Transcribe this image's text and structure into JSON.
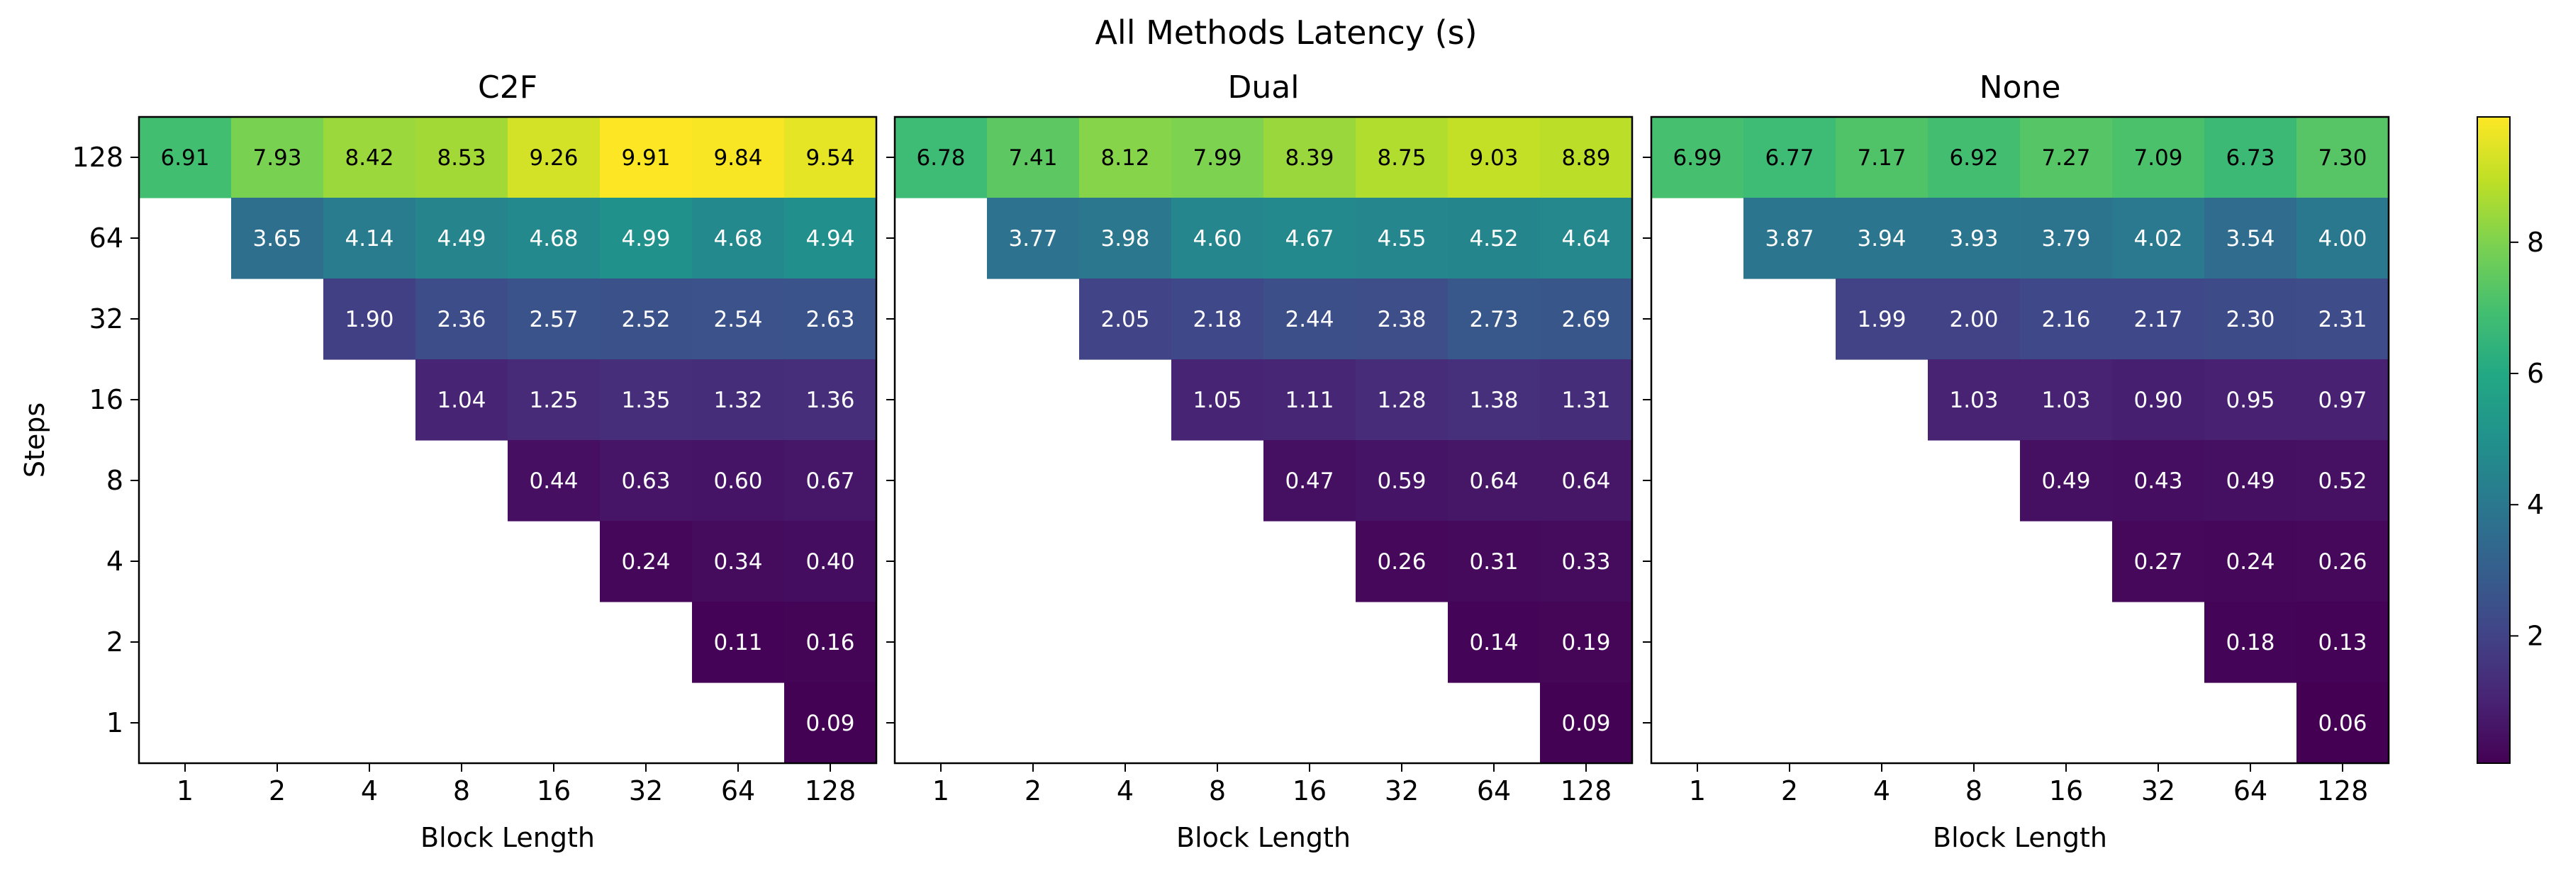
{
  "suptitle": "All Methods Latency (s)",
  "chart_data": [
    {
      "type": "heatmap",
      "title": "C2F",
      "xlabel": "Block Length",
      "ylabel": "Steps",
      "x_categories": [
        "1",
        "2",
        "4",
        "8",
        "16",
        "32",
        "64",
        "128"
      ],
      "y_categories": [
        "128",
        "64",
        "32",
        "16",
        "8",
        "4",
        "2",
        "1"
      ],
      "values": [
        [
          6.91,
          7.93,
          8.42,
          8.53,
          9.26,
          9.91,
          9.84,
          9.54
        ],
        [
          null,
          3.65,
          4.14,
          4.49,
          4.68,
          4.99,
          4.68,
          4.94
        ],
        [
          null,
          null,
          1.9,
          2.36,
          2.57,
          2.52,
          2.54,
          2.63
        ],
        [
          null,
          null,
          null,
          1.04,
          1.25,
          1.35,
          1.32,
          1.36
        ],
        [
          null,
          null,
          null,
          null,
          0.44,
          0.63,
          0.6,
          0.67
        ],
        [
          null,
          null,
          null,
          null,
          null,
          0.24,
          0.34,
          0.4
        ],
        [
          null,
          null,
          null,
          null,
          null,
          null,
          0.11,
          0.16
        ],
        [
          null,
          null,
          null,
          null,
          null,
          null,
          null,
          0.09
        ]
      ],
      "labels": [
        [
          "6.91",
          "7.93",
          "8.42",
          "8.53",
          "9.26",
          "9.91",
          "9.84",
          "9.54"
        ],
        [
          "",
          "3.65",
          "4.14",
          "4.49",
          "4.68",
          "4.99",
          "4.68",
          "4.94"
        ],
        [
          "",
          "",
          "1.90",
          "2.36",
          "2.57",
          "2.52",
          "2.54",
          "2.63"
        ],
        [
          "",
          "",
          "",
          "1.04",
          "1.25",
          "1.35",
          "1.32",
          "1.36"
        ],
        [
          "",
          "",
          "",
          "",
          "0.44",
          "0.63",
          "0.60",
          "0.67"
        ],
        [
          "",
          "",
          "",
          "",
          "",
          "0.24",
          "0.34",
          "0.40"
        ],
        [
          "",
          "",
          "",
          "",
          "",
          "",
          "0.11",
          "0.16"
        ],
        [
          "",
          "",
          "",
          "",
          "",
          "",
          "",
          "0.09"
        ]
      ]
    },
    {
      "type": "heatmap",
      "title": "Dual",
      "xlabel": "Block Length",
      "ylabel": "",
      "x_categories": [
        "1",
        "2",
        "4",
        "8",
        "16",
        "32",
        "64",
        "128"
      ],
      "y_categories": [
        "128",
        "64",
        "32",
        "16",
        "8",
        "4",
        "2",
        "1"
      ],
      "values": [
        [
          6.78,
          7.41,
          8.12,
          7.99,
          8.39,
          8.75,
          9.03,
          8.89
        ],
        [
          null,
          3.77,
          3.98,
          4.6,
          4.67,
          4.55,
          4.52,
          4.64
        ],
        [
          null,
          null,
          2.05,
          2.18,
          2.44,
          2.38,
          2.73,
          2.69
        ],
        [
          null,
          null,
          null,
          1.05,
          1.11,
          1.28,
          1.38,
          1.31
        ],
        [
          null,
          null,
          null,
          null,
          0.47,
          0.59,
          0.64,
          0.64
        ],
        [
          null,
          null,
          null,
          null,
          null,
          0.26,
          0.31,
          0.33
        ],
        [
          null,
          null,
          null,
          null,
          null,
          null,
          0.14,
          0.19
        ],
        [
          null,
          null,
          null,
          null,
          null,
          null,
          null,
          0.09
        ]
      ],
      "labels": [
        [
          "6.78",
          "7.41",
          "8.12",
          "7.99",
          "8.39",
          "8.75",
          "9.03",
          "8.89"
        ],
        [
          "",
          "3.77",
          "3.98",
          "4.60",
          "4.67",
          "4.55",
          "4.52",
          "4.64"
        ],
        [
          "",
          "",
          "2.05",
          "2.18",
          "2.44",
          "2.38",
          "2.73",
          "2.69"
        ],
        [
          "",
          "",
          "",
          "1.05",
          "1.11",
          "1.28",
          "1.38",
          "1.31"
        ],
        [
          "",
          "",
          "",
          "",
          "0.47",
          "0.59",
          "0.64",
          "0.64"
        ],
        [
          "",
          "",
          "",
          "",
          "",
          "0.26",
          "0.31",
          "0.33"
        ],
        [
          "",
          "",
          "",
          "",
          "",
          "",
          "0.14",
          "0.19"
        ],
        [
          "",
          "",
          "",
          "",
          "",
          "",
          "",
          "0.09"
        ]
      ]
    },
    {
      "type": "heatmap",
      "title": "None",
      "xlabel": "Block Length",
      "ylabel": "",
      "x_categories": [
        "1",
        "2",
        "4",
        "8",
        "16",
        "32",
        "64",
        "128"
      ],
      "y_categories": [
        "128",
        "64",
        "32",
        "16",
        "8",
        "4",
        "2",
        "1"
      ],
      "values": [
        [
          6.99,
          6.77,
          7.17,
          6.92,
          7.27,
          7.09,
          6.73,
          7.3
        ],
        [
          null,
          3.87,
          3.94,
          3.93,
          3.79,
          4.02,
          3.54,
          4.0
        ],
        [
          null,
          null,
          1.99,
          2.0,
          2.16,
          2.17,
          2.3,
          2.31
        ],
        [
          null,
          null,
          null,
          1.03,
          1.03,
          0.9,
          0.95,
          0.97
        ],
        [
          null,
          null,
          null,
          null,
          0.49,
          0.43,
          0.49,
          0.52
        ],
        [
          null,
          null,
          null,
          null,
          null,
          0.27,
          0.24,
          0.26
        ],
        [
          null,
          null,
          null,
          null,
          null,
          null,
          0.18,
          0.13
        ],
        [
          null,
          null,
          null,
          null,
          null,
          null,
          null,
          0.06
        ]
      ],
      "labels": [
        [
          "6.99",
          "6.77",
          "7.17",
          "6.92",
          "7.27",
          "7.09",
          "6.73",
          "7.30"
        ],
        [
          "",
          "3.87",
          "3.94",
          "3.93",
          "3.79",
          "4.02",
          "3.54",
          "4.00"
        ],
        [
          "",
          "",
          "1.99",
          "2.00",
          "2.16",
          "2.17",
          "2.30",
          "2.31"
        ],
        [
          "",
          "",
          "",
          "1.03",
          "1.03",
          "0.90",
          "0.95",
          "0.97"
        ],
        [
          "",
          "",
          "",
          "",
          "0.49",
          "0.43",
          "0.49",
          "0.52"
        ],
        [
          "",
          "",
          "",
          "",
          "",
          "0.27",
          "0.24",
          "0.26"
        ],
        [
          "",
          "",
          "",
          "",
          "",
          "",
          "0.18",
          "0.13"
        ],
        [
          "",
          "",
          "",
          "",
          "",
          "",
          "",
          "0.06"
        ]
      ]
    }
  ],
  "colorbar": {
    "colormap": "viridis",
    "vmin": 0.06,
    "vmax": 9.91,
    "tick_values": [
      2,
      4,
      6,
      8
    ],
    "tick_labels": [
      "2",
      "4",
      "6",
      "8"
    ]
  },
  "colors": {
    "text_dark": "#000000",
    "text_light": "#ffffff",
    "axis": "#000000"
  }
}
